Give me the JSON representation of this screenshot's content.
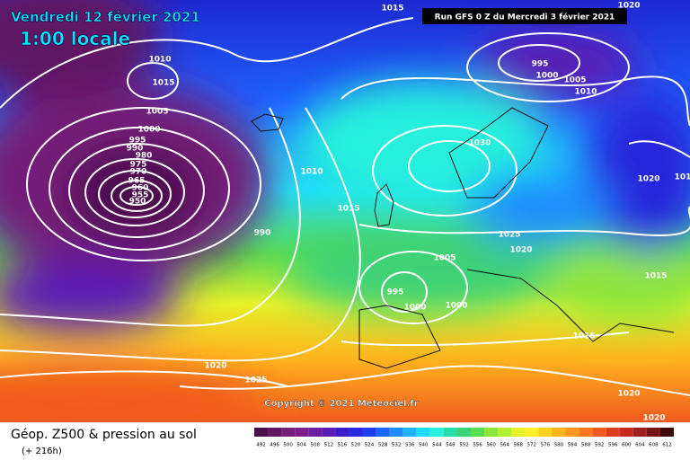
{
  "header": {
    "date": "Vendredi 12 février 2021",
    "time": "1:00 locale",
    "run": "Run GFS 0 Z du Mercredi 3 février 2021"
  },
  "map": {
    "copyright": "Copyright © 2021 Meteociel.fr",
    "isobar_labels": [
      "1015",
      "1020",
      "1010",
      "1015",
      "1005",
      "1000",
      "995",
      "990",
      "980",
      "975",
      "970",
      "965",
      "960",
      "955",
      "950",
      "990",
      "1010",
      "1015",
      "1030",
      "995",
      "1000",
      "1005",
      "1010",
      "1020",
      "101",
      "1025",
      "1020",
      "1005",
      "995",
      "1000",
      "1000",
      "1015",
      "1015",
      "1020",
      "1025",
      "1020",
      "1020"
    ]
  },
  "footer": {
    "title": "Géop. Z500 & pression au sol",
    "lead": "(+ 216h)"
  },
  "colorbar": {
    "labels": [
      492,
      496,
      500,
      504,
      508,
      512,
      516,
      520,
      524,
      528,
      532,
      536,
      540,
      544,
      548,
      552,
      556,
      560,
      564,
      568,
      572,
      576,
      580,
      584,
      588,
      592,
      596,
      600,
      604,
      608,
      612
    ],
    "colors": [
      "#4b0f4b",
      "#5f1464",
      "#731e78",
      "#7d1e8c",
      "#6e1ea0",
      "#5a1eb4",
      "#3c1ec8",
      "#2828dc",
      "#1e3cf0",
      "#1e64ff",
      "#1e8cff",
      "#1eb4ff",
      "#1edcff",
      "#28f0dc",
      "#28dcaa",
      "#3cd278",
      "#5adc50",
      "#8ce63c",
      "#b4f032",
      "#e6f028",
      "#fff028",
      "#ffd21e",
      "#ffb41e",
      "#ff961e",
      "#ff781e",
      "#f05a1e",
      "#dc3c1e",
      "#c8281e",
      "#a01e1e",
      "#781414",
      "#3c0a0a"
    ]
  }
}
